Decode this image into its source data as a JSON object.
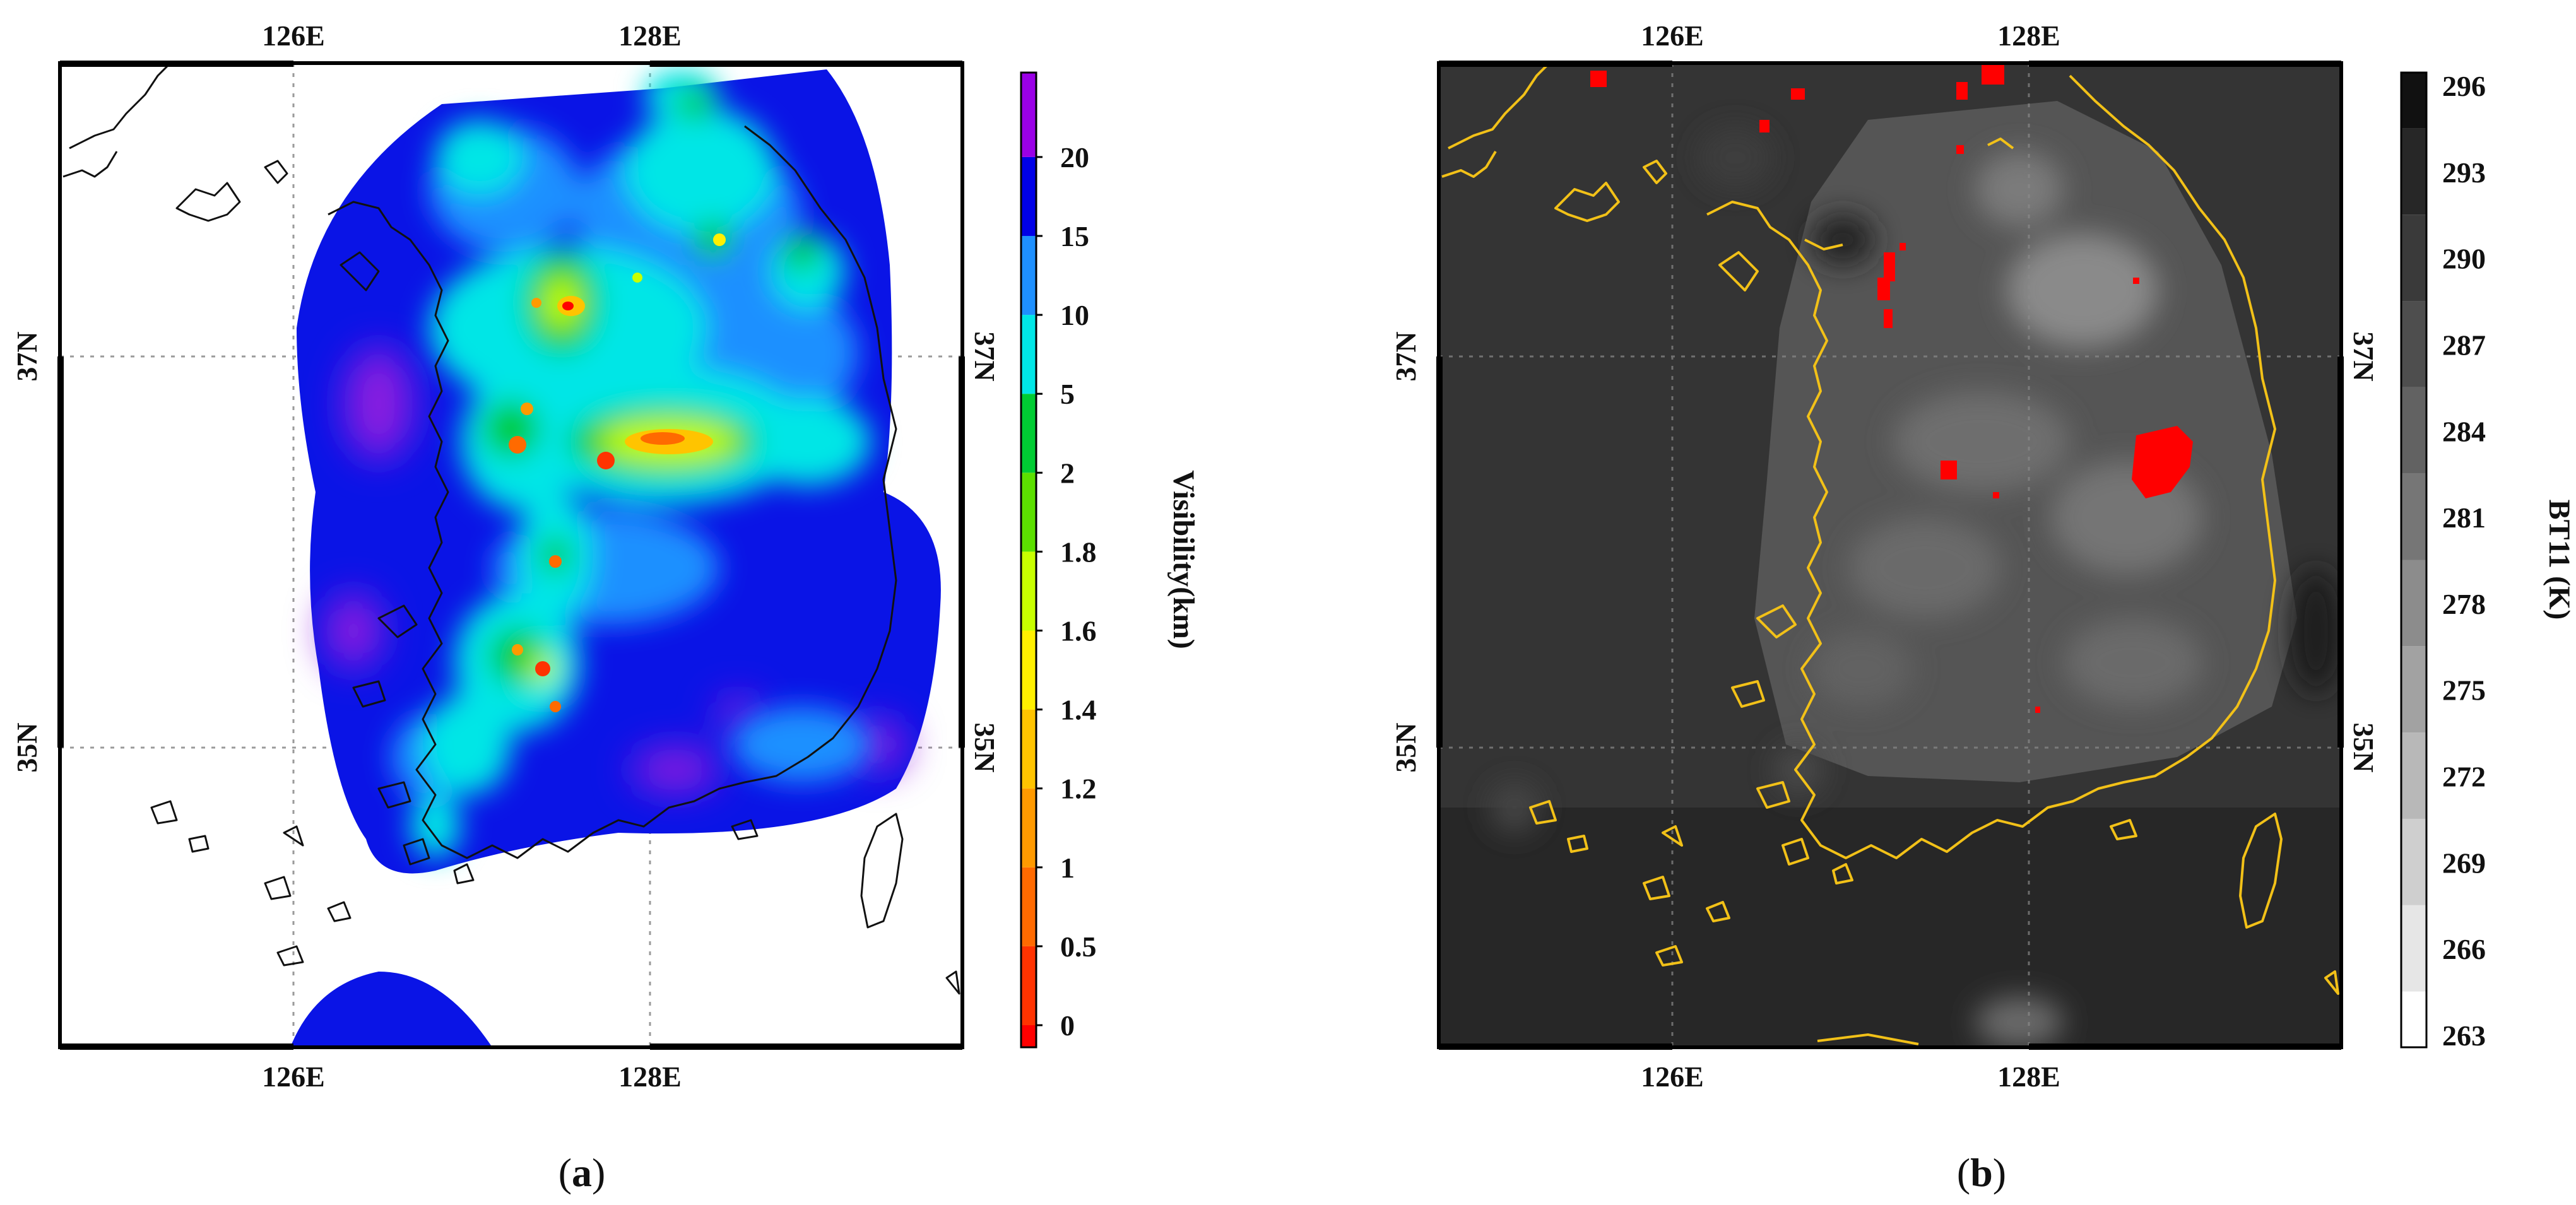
{
  "panels": [
    {
      "id": "a",
      "caption_open": "(",
      "caption_letter": "a",
      "caption_close": ")",
      "lon_top": [
        "126E",
        "128E"
      ],
      "lon_bottom": [
        "126E",
        "128E"
      ],
      "lat_left": [
        "37N",
        "35N"
      ],
      "lat_right": [
        "37N",
        "35N"
      ],
      "colorbar": {
        "title": "Visibility(km)",
        "ticks": [
          "0",
          "0.5",
          "1",
          "1.2",
          "1.4",
          "1.6",
          "1.8",
          "2",
          "5",
          "10",
          "15",
          "20"
        ],
        "colors": [
          "#ff0000",
          "#ff3300",
          "#ff6a00",
          "#ff9a00",
          "#ffc400",
          "#fff000",
          "#c8ff00",
          "#5ce000",
          "#00cc33",
          "#00e6e6",
          "#1e90ff",
          "#0000e6",
          "#9a00e6"
        ]
      }
    },
    {
      "id": "b",
      "caption_open": "(",
      "caption_letter": "b",
      "caption_close": ")",
      "lon_top": [
        "126E",
        "128E"
      ],
      "lon_bottom": [
        "126E",
        "128E"
      ],
      "lat_left": [
        "37N",
        "35N"
      ],
      "lat_right": [
        "37N",
        "35N"
      ],
      "colorbar": {
        "title": "BT11 (K)",
        "ticks": [
          "263",
          "266",
          "269",
          "272",
          "275",
          "278",
          "281",
          "284",
          "287",
          "290",
          "293",
          "296"
        ],
        "colors": [
          "#ffffff",
          "#e6e6e6",
          "#cfcfcf",
          "#b8b8b8",
          "#a2a2a2",
          "#8c8c8c",
          "#767676",
          "#626262",
          "#4e4e4e",
          "#3a3a3a",
          "#272727",
          "#111111"
        ]
      }
    }
  ],
  "colors": {
    "coast_a": "#111111",
    "coast_b": "#f2c118",
    "fog_mark": "#ff0000",
    "sea_b": "#333333"
  }
}
